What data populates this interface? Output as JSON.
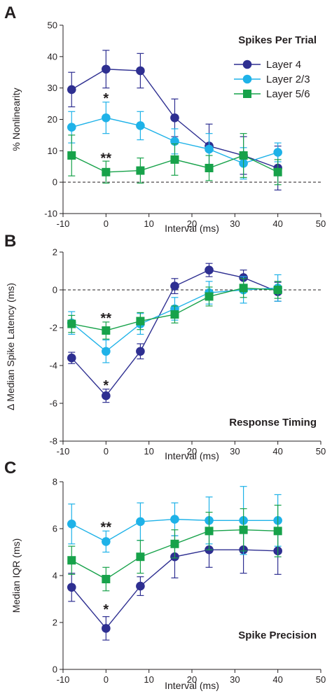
{
  "colors": {
    "layer4": "#2e2f91",
    "layer23": "#1eb2e8",
    "layer56": "#17a24a",
    "axis": "#231f20"
  },
  "chart_data": [
    {
      "panel": "A",
      "title": "Spikes Per Trial",
      "type": "line",
      "xlabel": "Interval (ms)",
      "ylabel": "% Nonlinearity",
      "xlim": [
        -10,
        50
      ],
      "ylim": [
        -10,
        50
      ],
      "xticks": [
        "-10",
        "0",
        "10",
        "20",
        "30",
        "40",
        "50"
      ],
      "yticks": [
        "-10",
        "0",
        "10",
        "20",
        "30",
        "40",
        "50"
      ],
      "reference_line": 0,
      "legend": {
        "position": "top-right",
        "entries": [
          "Layer 4",
          "Layer 2/3",
          "Layer 5/6"
        ]
      },
      "series": [
        {
          "name": "Layer 4",
          "marker": "circle",
          "x": [
            -8,
            0,
            8,
            16,
            24,
            32,
            40
          ],
          "y": [
            29.5,
            36,
            35.5,
            20.5,
            11.5,
            8.5,
            4.5
          ],
          "err": [
            5.5,
            6,
            5.5,
            6,
            7,
            6,
            7
          ]
        },
        {
          "name": "Layer 2/3",
          "marker": "circle",
          "x": [
            -8,
            0,
            8,
            16,
            24,
            32,
            40
          ],
          "y": [
            17.5,
            20.5,
            18,
            13,
            10.5,
            6,
            9.5
          ],
          "err": [
            5,
            5,
            4.5,
            4,
            5,
            5,
            3
          ]
        },
        {
          "name": "Layer 5/6",
          "marker": "square",
          "x": [
            -8,
            0,
            8,
            16,
            24,
            32,
            40
          ],
          "y": [
            8.5,
            3.2,
            3.7,
            7.2,
            4.5,
            8.5,
            3.2
          ],
          "err": [
            6.5,
            3.5,
            4,
            5,
            4,
            7,
            4
          ]
        }
      ],
      "annotations": [
        {
          "text": "*",
          "x": 0,
          "y": 27
        },
        {
          "text": "**",
          "x": 0,
          "y": 8
        }
      ]
    },
    {
      "panel": "B",
      "title": "Response Timing",
      "type": "line",
      "xlabel": "Interval (ms)",
      "ylabel": "Δ Median Spike Latency (ms)",
      "xlim": [
        -10,
        50
      ],
      "ylim": [
        -8,
        2
      ],
      "xticks": [
        "-10",
        "0",
        "10",
        "20",
        "30",
        "40",
        "50"
      ],
      "yticks": [
        "-8",
        "-6",
        "-4",
        "-2",
        "0",
        "2"
      ],
      "reference_line": 0,
      "series": [
        {
          "name": "Layer 4",
          "marker": "circle",
          "x": [
            -8,
            0,
            8,
            16,
            24,
            32,
            40
          ],
          "y": [
            -3.6,
            -5.6,
            -3.25,
            0.2,
            1.05,
            0.65,
            -0.1
          ],
          "err": [
            0.3,
            0.35,
            0.4,
            0.4,
            0.35,
            0.4,
            0.5
          ]
        },
        {
          "name": "Layer 2/3",
          "marker": "circle",
          "x": [
            -8,
            0,
            8,
            16,
            24,
            32,
            40
          ],
          "y": [
            -1.75,
            -3.25,
            -1.8,
            -1.0,
            -0.15,
            0.0,
            0.1
          ],
          "err": [
            0.6,
            0.6,
            0.55,
            0.6,
            0.6,
            0.7,
            0.7
          ]
        },
        {
          "name": "Layer 5/6",
          "marker": "square",
          "x": [
            -8,
            0,
            8,
            16,
            24,
            32,
            40
          ],
          "y": [
            -1.8,
            -2.15,
            -1.65,
            -1.3,
            -0.35,
            0.1,
            0.0
          ],
          "err": [
            0.45,
            0.45,
            0.45,
            0.45,
            0.5,
            0.5,
            0.45
          ]
        }
      ],
      "annotations": [
        {
          "text": "**",
          "x": 0,
          "y": -1.45
        },
        {
          "text": "*",
          "x": 0,
          "y": -5.0
        }
      ]
    },
    {
      "panel": "C",
      "title": "Spike Precision",
      "type": "line",
      "xlabel": "Interval (ms)",
      "ylabel": "Median IQR (ms)",
      "xlim": [
        -10,
        50
      ],
      "ylim": [
        0,
        8
      ],
      "xticks": [
        "-10",
        "0",
        "10",
        "20",
        "30",
        "40",
        "50"
      ],
      "yticks": [
        "0",
        "2",
        "4",
        "6",
        "8"
      ],
      "series": [
        {
          "name": "Layer 4",
          "marker": "circle",
          "x": [
            -8,
            0,
            8,
            16,
            24,
            32,
            40
          ],
          "y": [
            3.5,
            1.75,
            3.55,
            4.8,
            5.1,
            5.1,
            5.05
          ],
          "err": [
            0.6,
            0.5,
            0.4,
            0.9,
            0.75,
            1.0,
            1.0
          ]
        },
        {
          "name": "Layer 2/3",
          "marker": "circle",
          "x": [
            -8,
            0,
            8,
            16,
            24,
            32,
            40
          ],
          "y": [
            6.2,
            5.45,
            6.3,
            6.4,
            6.35,
            6.35,
            6.35
          ],
          "err": [
            0.85,
            0.45,
            0.8,
            0.7,
            1.0,
            1.45,
            1.1
          ]
        },
        {
          "name": "Layer 5/6",
          "marker": "square",
          "x": [
            -8,
            0,
            8,
            16,
            24,
            32,
            40
          ],
          "y": [
            4.65,
            3.85,
            4.8,
            5.35,
            5.9,
            5.95,
            5.9
          ],
          "err": [
            0.6,
            0.5,
            0.7,
            0.6,
            0.8,
            0.9,
            1.1
          ]
        }
      ],
      "annotations": [
        {
          "text": "**",
          "x": 0,
          "y": 6.1
        },
        {
          "text": "*",
          "x": 0,
          "y": 2.6
        }
      ]
    }
  ]
}
